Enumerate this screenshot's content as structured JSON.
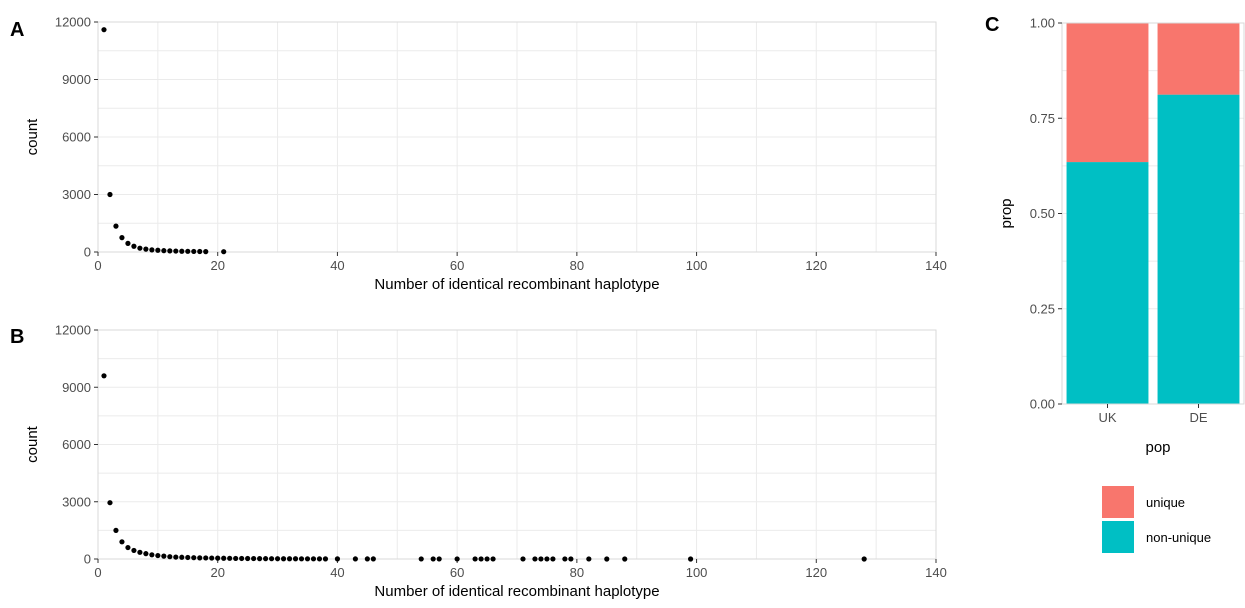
{
  "chart_data": [
    {
      "panel": "A",
      "type": "scatter",
      "xlabel": "Number of identical recombinant haplotype",
      "ylabel": "count",
      "xlim": [
        0,
        140
      ],
      "ylim": [
        0,
        12000
      ],
      "xticks": [
        0,
        20,
        40,
        60,
        80,
        100,
        120,
        140
      ],
      "yticks": [
        0,
        3000,
        6000,
        9000,
        12000
      ],
      "grid": true,
      "points": [
        [
          1,
          11600
        ],
        [
          2,
          3000
        ],
        [
          3,
          1350
        ],
        [
          4,
          750
        ],
        [
          5,
          450
        ],
        [
          6,
          300
        ],
        [
          7,
          200
        ],
        [
          8,
          150
        ],
        [
          9,
          110
        ],
        [
          10,
          90
        ],
        [
          11,
          70
        ],
        [
          12,
          60
        ],
        [
          13,
          50
        ],
        [
          14,
          40
        ],
        [
          15,
          35
        ],
        [
          16,
          30
        ],
        [
          17,
          25
        ],
        [
          18,
          20
        ],
        [
          21,
          15
        ]
      ]
    },
    {
      "panel": "B",
      "type": "scatter",
      "xlabel": "Number of identical recombinant haplotype",
      "ylabel": "count",
      "xlim": [
        0,
        140
      ],
      "ylim": [
        0,
        12000
      ],
      "xticks": [
        0,
        20,
        40,
        60,
        80,
        100,
        120,
        140
      ],
      "yticks": [
        0,
        3000,
        6000,
        9000,
        12000
      ],
      "grid": true,
      "points": [
        [
          1,
          9600
        ],
        [
          2,
          2950
        ],
        [
          3,
          1500
        ],
        [
          4,
          900
        ],
        [
          5,
          600
        ],
        [
          6,
          450
        ],
        [
          7,
          350
        ],
        [
          8,
          280
        ],
        [
          9,
          220
        ],
        [
          10,
          180
        ],
        [
          11,
          150
        ],
        [
          12,
          120
        ],
        [
          13,
          100
        ],
        [
          14,
          90
        ],
        [
          15,
          80
        ],
        [
          16,
          70
        ],
        [
          17,
          60
        ],
        [
          18,
          55
        ],
        [
          19,
          50
        ],
        [
          20,
          45
        ],
        [
          21,
          40
        ],
        [
          22,
          35
        ],
        [
          23,
          30
        ],
        [
          24,
          28
        ],
        [
          25,
          25
        ],
        [
          26,
          22
        ],
        [
          27,
          20
        ],
        [
          28,
          18
        ],
        [
          29,
          16
        ],
        [
          30,
          15
        ],
        [
          31,
          14
        ],
        [
          32,
          13
        ],
        [
          33,
          12
        ],
        [
          34,
          11
        ],
        [
          35,
          10
        ],
        [
          36,
          9
        ],
        [
          37,
          8
        ],
        [
          38,
          7
        ],
        [
          40,
          6
        ],
        [
          43,
          5
        ],
        [
          45,
          5
        ],
        [
          46,
          5
        ],
        [
          54,
          4
        ],
        [
          56,
          4
        ],
        [
          57,
          4
        ],
        [
          60,
          3
        ],
        [
          63,
          3
        ],
        [
          64,
          3
        ],
        [
          65,
          3
        ],
        [
          66,
          3
        ],
        [
          71,
          2
        ],
        [
          73,
          2
        ],
        [
          74,
          2
        ],
        [
          75,
          2
        ],
        [
          76,
          2
        ],
        [
          78,
          2
        ],
        [
          79,
          2
        ],
        [
          82,
          2
        ],
        [
          85,
          1
        ],
        [
          88,
          1
        ],
        [
          99,
          1
        ],
        [
          128,
          1
        ]
      ]
    },
    {
      "panel": "C",
      "type": "bar",
      "stacked": true,
      "xlabel": "pop",
      "ylabel": "prop",
      "categories": [
        "UK",
        "DE"
      ],
      "ylim": [
        0,
        1
      ],
      "yticks": [
        "0.00",
        "0.25",
        "0.50",
        "0.75",
        "1.00"
      ],
      "grid": true,
      "legend_position": "bottom-right",
      "series": [
        {
          "name": "non-unique",
          "color": "#00bfc4",
          "values": [
            0.635,
            0.812
          ]
        },
        {
          "name": "unique",
          "color": "#f8766d",
          "values": [
            0.365,
            0.188
          ]
        }
      ]
    }
  ]
}
